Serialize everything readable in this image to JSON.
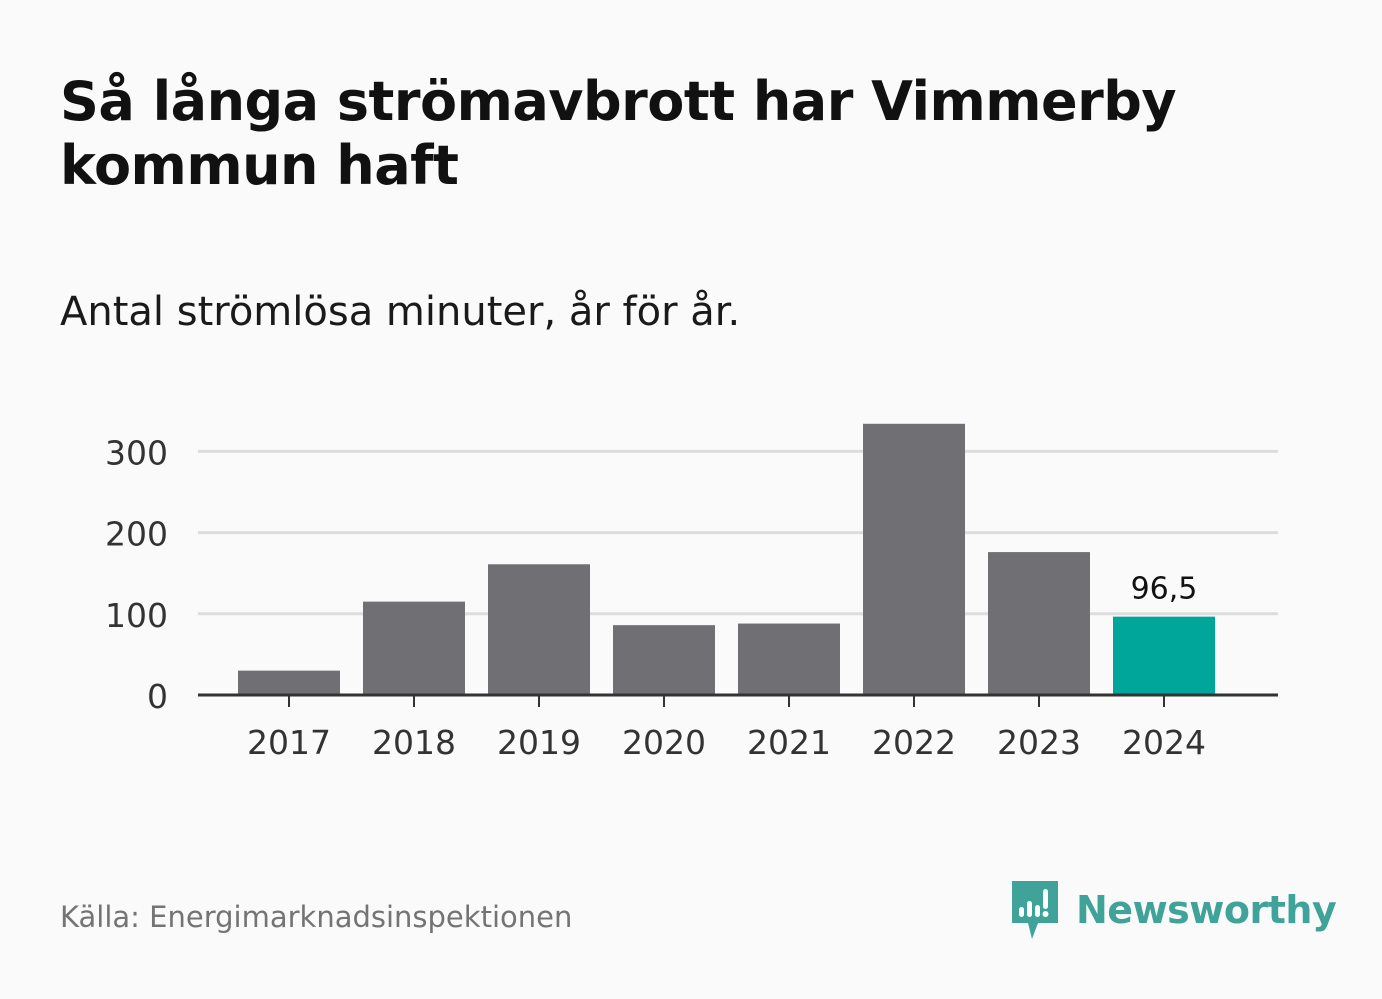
{
  "header": {
    "title": "Så långa strömavbrott har Vimmerby kommun haft",
    "subtitle": "Antal strömlösa minuter, år för år."
  },
  "footer": {
    "source": "Källa: Energimarknadsinspektionen",
    "brand": "Newsworthy"
  },
  "colors": {
    "bar": "#707074",
    "highlight": "#00a69a",
    "grid": "#dddddd",
    "axis": "#333333",
    "brand": "#3fa39a"
  },
  "chart_data": {
    "type": "bar",
    "categories": [
      "2017",
      "2018",
      "2019",
      "2020",
      "2021",
      "2022",
      "2023",
      "2024"
    ],
    "values": [
      30,
      115,
      161,
      86,
      88,
      334,
      176,
      96.5
    ],
    "highlight_index": 7,
    "highlight_label": "96,5",
    "yticks": [
      0,
      100,
      200,
      300
    ],
    "ylim": [
      0,
      340
    ],
    "grid": true
  }
}
